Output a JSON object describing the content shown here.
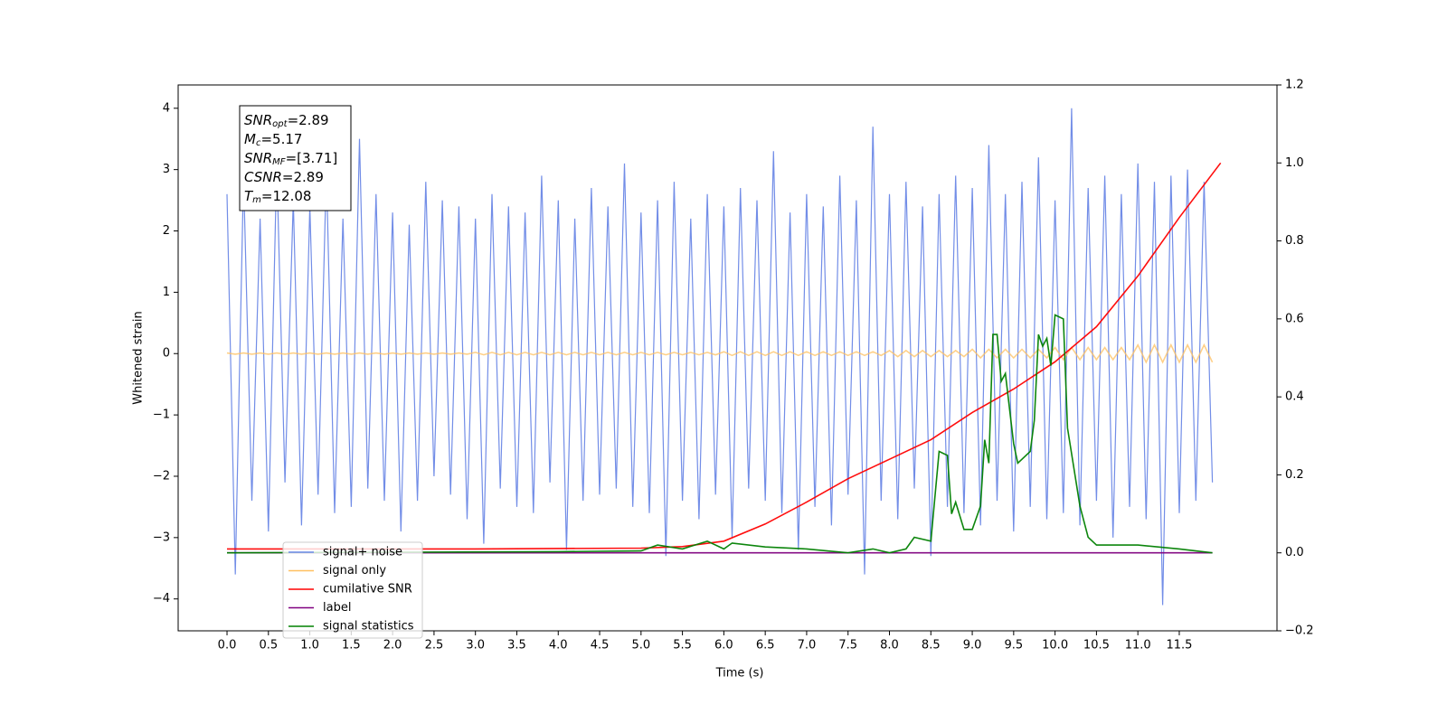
{
  "chart_data": {
    "type": "line",
    "xlabel": "Time (s)",
    "ylabel": "Whitened strain",
    "xlim": [
      -0.59,
      12.68
    ],
    "ylim": [
      -4.52,
      4.38
    ],
    "y2lim": [
      -0.2,
      1.2
    ],
    "xticks": [
      {
        "value": 0,
        "label": "0.0"
      },
      0.5,
      {
        "value": 1,
        "label": "1.0"
      },
      1.5,
      {
        "value": 2,
        "label": "2.0"
      },
      2.5,
      {
        "value": 3,
        "label": "3.0"
      },
      3.5,
      {
        "value": 4,
        "label": "4.0"
      },
      4.5,
      {
        "value": 5,
        "label": "5.0"
      },
      5.5,
      {
        "value": 6,
        "label": "6.0"
      },
      6.5,
      {
        "value": 7,
        "label": "7.0"
      },
      7.5,
      {
        "value": 8,
        "label": "8.0"
      },
      8.5,
      {
        "value": 9,
        "label": "9.0"
      },
      9.5,
      {
        "value": 10,
        "label": "10.0"
      },
      10.5,
      {
        "value": 11,
        "label": "11.0"
      },
      11.5
    ],
    "yticks": [
      {
        "value": -4,
        "label": "−4"
      },
      {
        "value": -3,
        "label": "−3"
      },
      {
        "value": -2,
        "label": "−2"
      },
      {
        "value": -1,
        "label": "−1"
      },
      0,
      1,
      2,
      3,
      4
    ],
    "y2ticks": [
      {
        "value": -0.2,
        "label": "−0.2"
      },
      {
        "value": 0,
        "label": "0.0"
      },
      0.2,
      0.4,
      0.6,
      0.8,
      {
        "value": 1,
        "label": "1.0"
      },
      1.2
    ],
    "legend": "lower left",
    "annotations": [
      {
        "base": "SNR",
        "sub": "opt",
        "rest": "=2.89"
      },
      {
        "base": "M",
        "sub": "c",
        "rest": "=5.17"
      },
      {
        "base": "SNR",
        "sub": "MF",
        "rest": "=[3.71]"
      },
      {
        "base": "CSNR",
        "sub": null,
        "rest": "=2.89"
      },
      {
        "base": "T",
        "sub": "m",
        "rest": "=12.08"
      }
    ],
    "x": [
      0,
      0.1,
      0.2,
      0.3,
      0.4,
      0.5,
      0.6,
      0.7,
      0.8,
      0.9,
      1,
      1.1,
      1.2,
      1.3,
      1.4,
      1.5,
      1.6,
      1.7,
      1.8,
      1.9,
      2,
      2.1,
      2.2,
      2.3,
      2.4,
      2.5,
      2.6,
      2.7,
      2.8,
      2.9,
      3,
      3.1,
      3.2,
      3.3,
      3.4,
      3.5,
      3.6,
      3.7,
      3.8,
      3.9,
      4,
      4.1,
      4.2,
      4.3,
      4.4,
      4.5,
      4.6,
      4.7,
      4.8,
      4.9,
      5,
      5.1,
      5.2,
      5.3,
      5.4,
      5.5,
      5.6,
      5.7,
      5.8,
      5.9,
      6,
      6.1,
      6.2,
      6.3,
      6.4,
      6.5,
      6.6,
      6.7,
      6.8,
      6.9,
      7,
      7.1,
      7.2,
      7.3,
      7.4,
      7.5,
      7.6,
      7.7,
      7.8,
      7.9,
      8,
      8.1,
      8.2,
      8.3,
      8.4,
      8.5,
      8.6,
      8.7,
      8.8,
      8.9,
      9,
      9.1,
      9.2,
      9.3,
      9.4,
      9.5,
      9.6,
      9.7,
      9.8,
      9.9,
      10,
      10.1,
      10.2,
      10.3,
      10.4,
      10.5,
      10.6,
      10.7,
      10.8,
      10.9,
      11,
      11.1,
      11.2,
      11.3,
      11.4,
      11.5,
      11.6,
      11.7,
      11.8,
      11.9
    ],
    "series": [
      {
        "name": "signal+ noise",
        "color": "#6a87e6",
        "values": [
          2.6,
          -3.6,
          2.9,
          -2.4,
          2.2,
          -2.9,
          3.1,
          -2.1,
          2.5,
          -2.8,
          2.4,
          -2.3,
          3.0,
          -2.6,
          2.2,
          -2.5,
          3.5,
          -2.2,
          2.6,
          -2.4,
          2.3,
          -2.9,
          2.1,
          -2.4,
          2.8,
          -2.0,
          2.5,
          -2.3,
          2.4,
          -2.7,
          2.2,
          -3.1,
          2.6,
          -2.2,
          2.4,
          -2.5,
          2.3,
          -2.6,
          2.9,
          -2.1,
          2.5,
          -3.2,
          2.2,
          -2.4,
          2.7,
          -2.3,
          2.4,
          -2.2,
          3.1,
          -2.5,
          2.3,
          -2.6,
          2.5,
          -3.3,
          2.8,
          -2.4,
          2.2,
          -2.7,
          2.6,
          -2.3,
          2.4,
          -3.0,
          2.7,
          -2.2,
          2.5,
          -2.4,
          3.3,
          -2.6,
          2.3,
          -3.2,
          2.6,
          -2.5,
          2.4,
          -2.8,
          2.9,
          -2.3,
          2.5,
          -3.6,
          3.7,
          -2.4,
          2.6,
          -2.7,
          2.8,
          -2.2,
          2.4,
          -3.3,
          2.6,
          -2.5,
          2.9,
          -2.6,
          2.7,
          -2.8,
          3.4,
          -2.4,
          2.6,
          -2.9,
          2.8,
          -2.5,
          3.2,
          -2.7,
          2.5,
          -2.6,
          4.0,
          -2.8,
          2.7,
          -2.4,
          2.9,
          -3.0,
          2.6,
          -2.5,
          3.1,
          -2.7,
          2.8,
          -4.1,
          2.9,
          -2.6,
          3.0,
          -2.4,
          2.8,
          -2.1
        ]
      },
      {
        "name": "signal only",
        "color": "#ffc060",
        "values": [
          0.01,
          -0.01,
          0.01,
          -0.01,
          0.01,
          -0.01,
          0.01,
          -0.01,
          0.01,
          -0.01,
          0.01,
          -0.01,
          0.01,
          -0.01,
          0.01,
          -0.01,
          0.01,
          -0.01,
          0.01,
          -0.01,
          0.01,
          -0.01,
          0.01,
          -0.01,
          0.01,
          -0.01,
          0.01,
          -0.01,
          0.01,
          -0.01,
          0.02,
          -0.02,
          0.02,
          -0.02,
          0.02,
          -0.02,
          0.02,
          -0.02,
          0.02,
          -0.02,
          0.02,
          -0.02,
          0.02,
          -0.02,
          0.02,
          -0.02,
          0.02,
          -0.02,
          0.02,
          -0.02,
          0.02,
          -0.02,
          0.02,
          -0.02,
          0.02,
          -0.02,
          0.02,
          -0.02,
          0.02,
          -0.02,
          0.03,
          -0.03,
          0.03,
          -0.03,
          0.03,
          -0.03,
          0.03,
          -0.03,
          0.03,
          -0.03,
          0.03,
          -0.03,
          0.03,
          -0.03,
          0.03,
          -0.03,
          0.03,
          -0.03,
          0.03,
          -0.03,
          0.05,
          -0.05,
          0.05,
          -0.05,
          0.05,
          -0.05,
          0.05,
          -0.05,
          0.05,
          -0.05,
          0.07,
          -0.07,
          0.07,
          -0.07,
          0.07,
          -0.07,
          0.07,
          -0.07,
          0.07,
          -0.07,
          0.1,
          -0.1,
          0.1,
          -0.1,
          0.1,
          -0.1,
          0.1,
          -0.1,
          0.1,
          -0.1,
          0.14,
          -0.14,
          0.14,
          -0.14,
          0.14,
          -0.14,
          0.14,
          -0.14,
          0.14,
          -0.14
        ]
      },
      {
        "name": "cumilative SNR",
        "color": "#ff0000",
        "axis": "y2",
        "x": [
          0,
          3,
          5,
          5.5,
          6,
          6.5,
          7,
          7.5,
          8,
          8.5,
          9,
          9.5,
          10,
          10.5,
          11,
          11.5,
          12
        ],
        "values": [
          0.01,
          0.01,
          0.012,
          0.016,
          0.03,
          0.074,
          0.13,
          0.19,
          0.24,
          0.29,
          0.36,
          0.42,
          0.49,
          0.58,
          0.71,
          0.86,
          1.0
        ]
      },
      {
        "name": "label",
        "color": "#800080",
        "axis": "y2",
        "x": [
          0,
          11.9
        ],
        "values": [
          0,
          0
        ]
      },
      {
        "name": "signal statistics",
        "color": "#008000",
        "axis": "y2",
        "x": [
          0,
          4,
          5,
          5.2,
          5.5,
          5.8,
          6,
          6.1,
          6.5,
          7,
          7.5,
          7.8,
          8,
          8.2,
          8.3,
          8.5,
          8.6,
          8.7,
          8.75,
          8.8,
          8.9,
          9,
          9.1,
          9.15,
          9.2,
          9.25,
          9.3,
          9.35,
          9.4,
          9.5,
          9.55,
          9.7,
          9.75,
          9.8,
          9.85,
          9.9,
          9.95,
          10,
          10.1,
          10.15,
          10.3,
          10.4,
          10.5,
          11,
          11.5,
          11.9
        ],
        "values": [
          0,
          0.003,
          0.005,
          0.02,
          0.01,
          0.03,
          0.01,
          0.025,
          0.015,
          0.01,
          0,
          0.01,
          0,
          0.01,
          0.04,
          0.03,
          0.26,
          0.25,
          0.1,
          0.13,
          0.06,
          0.06,
          0.12,
          0.29,
          0.23,
          0.56,
          0.56,
          0.44,
          0.46,
          0.28,
          0.23,
          0.26,
          0.34,
          0.56,
          0.53,
          0.55,
          0.48,
          0.61,
          0.6,
          0.32,
          0.12,
          0.04,
          0.02,
          0.02,
          0.01,
          0
        ]
      }
    ]
  }
}
